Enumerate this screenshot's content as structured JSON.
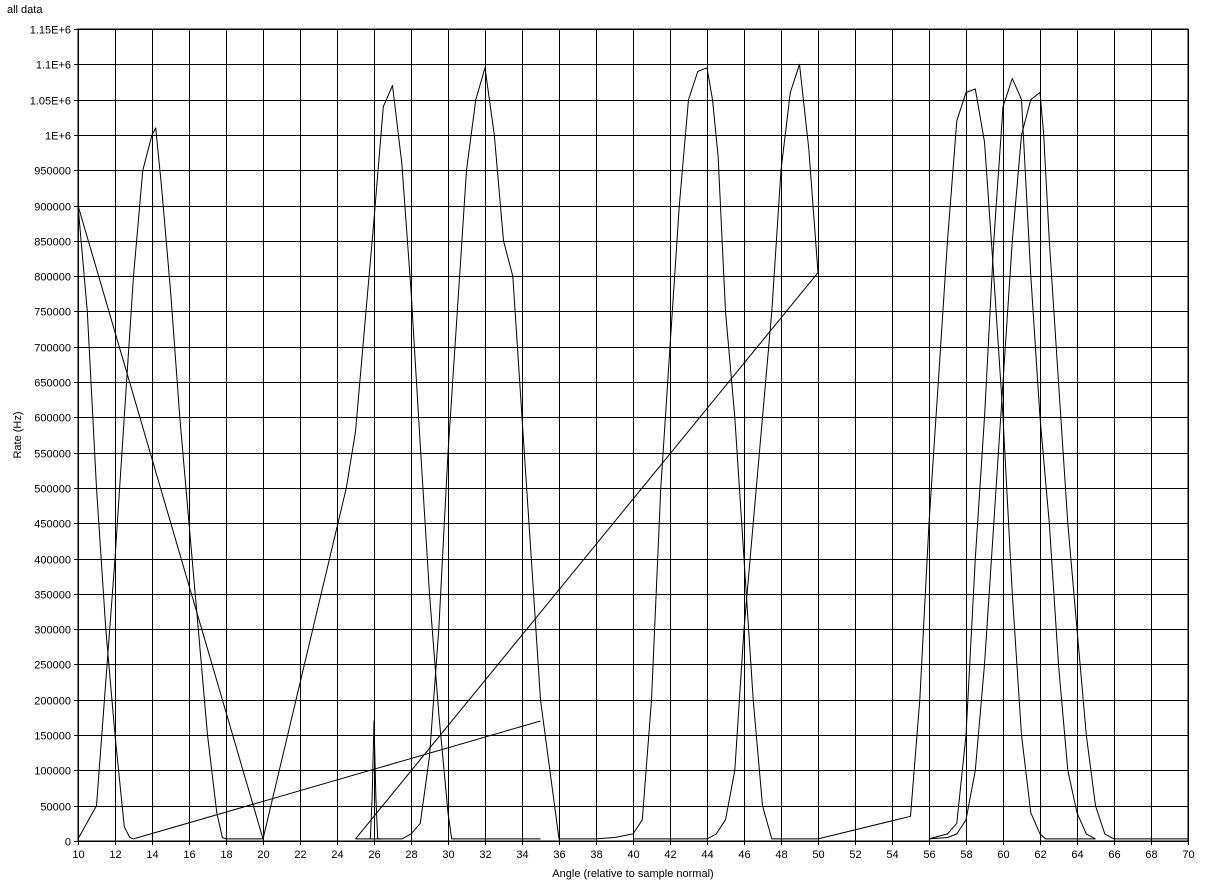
{
  "chart_data": {
    "type": "line",
    "title": "all data",
    "xlabel": "Angle (relative to sample normal)",
    "ylabel": "Rate (Hz)",
    "xlim": [
      10,
      70
    ],
    "ylim": [
      0,
      1150000
    ],
    "grid": true,
    "legend": "none",
    "line_color": "#000000",
    "x_ticks": [
      10,
      12,
      14,
      16,
      18,
      20,
      22,
      24,
      26,
      28,
      30,
      32,
      34,
      36,
      38,
      40,
      42,
      44,
      46,
      48,
      50,
      52,
      54,
      56,
      58,
      60,
      62,
      64,
      66,
      68,
      70
    ],
    "x_tick_labels": [
      "10",
      "12",
      "14",
      "16",
      "18",
      "20",
      "22",
      "24",
      "26",
      "28",
      "30",
      "32",
      "34",
      "36",
      "38",
      "40",
      "42",
      "44",
      "46",
      "48",
      "50",
      "52",
      "54",
      "56",
      "58",
      "60",
      "62",
      "64",
      "66",
      "68",
      "70"
    ],
    "y_ticks": [
      0,
      50000,
      100000,
      150000,
      200000,
      250000,
      300000,
      350000,
      400000,
      450000,
      500000,
      550000,
      600000,
      650000,
      700000,
      750000,
      800000,
      850000,
      900000,
      950000,
      1000000,
      1050000,
      1100000,
      1150000
    ],
    "y_tick_labels": [
      "0",
      "50000",
      "100000",
      "150000",
      "200000",
      "250000",
      "300000",
      "350000",
      "400000",
      "450000",
      "500000",
      "550000",
      "600000",
      "650000",
      "700000",
      "750000",
      "800000",
      "850000",
      "900000",
      "950000",
      "1E+6",
      "1.05E+6",
      "1.1E+6",
      "1.15E+6"
    ],
    "series": [
      {
        "x": [
          10,
          10.5,
          11,
          11.5,
          12,
          12.5,
          12.8,
          13,
          35
        ],
        "y": [
          900000,
          750000,
          500000,
          300000,
          150000,
          20000,
          5000,
          3000,
          170000
        ]
      },
      {
        "x": [
          10,
          11,
          12,
          13,
          13.5,
          14,
          14.2,
          14.5,
          15,
          15.5,
          16,
          16.5,
          17,
          17.5,
          17.8,
          18,
          20
        ],
        "y": [
          3000,
          50000,
          400000,
          800000,
          950000,
          1000000,
          1010000,
          930000,
          780000,
          600000,
          450000,
          300000,
          150000,
          40000,
          5000,
          3000,
          3000
        ]
      },
      {
        "x": [
          10,
          20,
          24.5,
          25,
          26,
          26.5,
          27,
          27.5,
          28,
          28.5,
          29,
          29.5,
          30,
          30.2,
          35
        ],
        "y": [
          900000,
          3000,
          500000,
          580000,
          880000,
          1040000,
          1070000,
          960000,
          780000,
          560000,
          350000,
          180000,
          40000,
          3000,
          3000
        ]
      },
      {
        "x": [
          25.8,
          25.9,
          26,
          26.1,
          26.2,
          26.4
        ],
        "y": [
          3000,
          60000,
          170000,
          60000,
          3000,
          3000
        ]
      },
      {
        "x": [
          25,
          26.5,
          27.5,
          28,
          28.5,
          29,
          29.5,
          30,
          30.5,
          31,
          31.5,
          32,
          32.5,
          33,
          33.5,
          34,
          34.5,
          35,
          36,
          37,
          38,
          39,
          40,
          40.5,
          41,
          41.5,
          42,
          42.5,
          43,
          43.5,
          44,
          44.3,
          44.6,
          45,
          45.5,
          46,
          46.5,
          47,
          47.5,
          48,
          50
        ],
        "y": [
          3000,
          3000,
          3000,
          10000,
          25000,
          120000,
          300000,
          550000,
          750000,
          950000,
          1050000,
          1095000,
          1000000,
          850000,
          800000,
          600000,
          400000,
          200000,
          3000,
          3000,
          3000,
          5000,
          10000,
          30000,
          200000,
          500000,
          700000,
          900000,
          1050000,
          1090000,
          1095000,
          1050000,
          970000,
          750000,
          600000,
          400000,
          200000,
          50000,
          3000,
          3000,
          3000
        ]
      },
      {
        "x": [
          25,
          50,
          49.5,
          49,
          48.5,
          48,
          47.5,
          47,
          46.5,
          46,
          45.5,
          45,
          44.5,
          44,
          43,
          42,
          41,
          40
        ],
        "y": [
          3000,
          805000,
          980000,
          1100000,
          1060000,
          950000,
          750000,
          600000,
          450000,
          300000,
          100000,
          30000,
          10000,
          3000,
          3000,
          3000,
          3000,
          3000
        ]
      },
      {
        "x": [
          50,
          55,
          55.5,
          56,
          56.5,
          57,
          57.5,
          58,
          58.5,
          59,
          59.5,
          60,
          60.5,
          61,
          61.5,
          62,
          62.3,
          62.6,
          63,
          64,
          65
        ],
        "y": [
          3000,
          35000,
          200000,
          450000,
          650000,
          850000,
          1020000,
          1060000,
          1065000,
          990000,
          800000,
          600000,
          350000,
          150000,
          40000,
          10000,
          3000,
          3000,
          3000,
          3000,
          3000
        ]
      },
      {
        "x": [
          56,
          57,
          57.5,
          58,
          58.5,
          59,
          59.5,
          60,
          60.5,
          61,
          61.2,
          61.5,
          62,
          62.5,
          63,
          63.5,
          64,
          64.5,
          65
        ],
        "y": [
          3000,
          10000,
          25000,
          150000,
          400000,
          600000,
          850000,
          1040000,
          1080000,
          1050000,
          950000,
          800000,
          600000,
          450000,
          250000,
          100000,
          40000,
          10000,
          3000
        ]
      },
      {
        "x": [
          56,
          57,
          57.5,
          58,
          58.5,
          59,
          59.5,
          60,
          60.5,
          61,
          61.5,
          62,
          62.2,
          62.5,
          63,
          63.5,
          64,
          64.5,
          65,
          65.5,
          66,
          70
        ],
        "y": [
          3000,
          5000,
          10000,
          30000,
          100000,
          250000,
          450000,
          650000,
          850000,
          1000000,
          1050000,
          1060000,
          1000000,
          850000,
          650000,
          450000,
          300000,
          150000,
          50000,
          10000,
          3000,
          3000
        ]
      }
    ]
  }
}
